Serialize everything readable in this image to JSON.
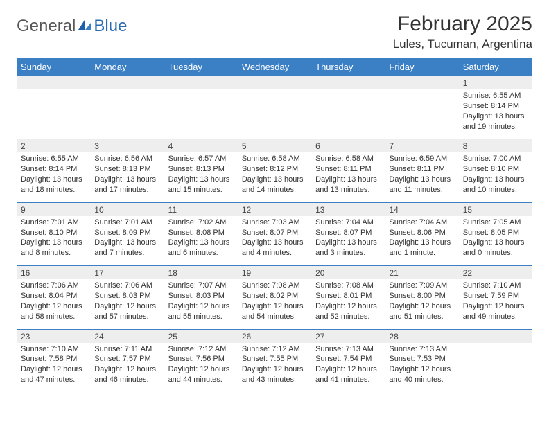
{
  "logo": {
    "gray": "General",
    "blue": "Blue"
  },
  "title": "February 2025",
  "location": "Lules, Tucuman, Argentina",
  "colors": {
    "header_bg": "#3b7fc4",
    "header_text": "#ffffff",
    "numrow_bg": "#eeeeee",
    "border": "#3b7fc4",
    "text": "#333333",
    "logo_gray": "#555555",
    "logo_blue": "#2b6cb0"
  },
  "typography": {
    "title_fontsize": 30,
    "location_fontsize": 17,
    "dayhead_fontsize": 13,
    "daynum_fontsize": 12,
    "body_fontsize": 11
  },
  "day_headers": [
    "Sunday",
    "Monday",
    "Tuesday",
    "Wednesday",
    "Thursday",
    "Friday",
    "Saturday"
  ],
  "weeks": [
    [
      null,
      null,
      null,
      null,
      null,
      null,
      {
        "n": "1",
        "sunrise": "6:55 AM",
        "sunset": "8:14 PM",
        "daylight": "13 hours and 19 minutes."
      }
    ],
    [
      {
        "n": "2",
        "sunrise": "6:55 AM",
        "sunset": "8:14 PM",
        "daylight": "13 hours and 18 minutes."
      },
      {
        "n": "3",
        "sunrise": "6:56 AM",
        "sunset": "8:13 PM",
        "daylight": "13 hours and 17 minutes."
      },
      {
        "n": "4",
        "sunrise": "6:57 AM",
        "sunset": "8:13 PM",
        "daylight": "13 hours and 15 minutes."
      },
      {
        "n": "5",
        "sunrise": "6:58 AM",
        "sunset": "8:12 PM",
        "daylight": "13 hours and 14 minutes."
      },
      {
        "n": "6",
        "sunrise": "6:58 AM",
        "sunset": "8:11 PM",
        "daylight": "13 hours and 13 minutes."
      },
      {
        "n": "7",
        "sunrise": "6:59 AM",
        "sunset": "8:11 PM",
        "daylight": "13 hours and 11 minutes."
      },
      {
        "n": "8",
        "sunrise": "7:00 AM",
        "sunset": "8:10 PM",
        "daylight": "13 hours and 10 minutes."
      }
    ],
    [
      {
        "n": "9",
        "sunrise": "7:01 AM",
        "sunset": "8:10 PM",
        "daylight": "13 hours and 8 minutes."
      },
      {
        "n": "10",
        "sunrise": "7:01 AM",
        "sunset": "8:09 PM",
        "daylight": "13 hours and 7 minutes."
      },
      {
        "n": "11",
        "sunrise": "7:02 AM",
        "sunset": "8:08 PM",
        "daylight": "13 hours and 6 minutes."
      },
      {
        "n": "12",
        "sunrise": "7:03 AM",
        "sunset": "8:07 PM",
        "daylight": "13 hours and 4 minutes."
      },
      {
        "n": "13",
        "sunrise": "7:04 AM",
        "sunset": "8:07 PM",
        "daylight": "13 hours and 3 minutes."
      },
      {
        "n": "14",
        "sunrise": "7:04 AM",
        "sunset": "8:06 PM",
        "daylight": "13 hours and 1 minute."
      },
      {
        "n": "15",
        "sunrise": "7:05 AM",
        "sunset": "8:05 PM",
        "daylight": "13 hours and 0 minutes."
      }
    ],
    [
      {
        "n": "16",
        "sunrise": "7:06 AM",
        "sunset": "8:04 PM",
        "daylight": "12 hours and 58 minutes."
      },
      {
        "n": "17",
        "sunrise": "7:06 AM",
        "sunset": "8:03 PM",
        "daylight": "12 hours and 57 minutes."
      },
      {
        "n": "18",
        "sunrise": "7:07 AM",
        "sunset": "8:03 PM",
        "daylight": "12 hours and 55 minutes."
      },
      {
        "n": "19",
        "sunrise": "7:08 AM",
        "sunset": "8:02 PM",
        "daylight": "12 hours and 54 minutes."
      },
      {
        "n": "20",
        "sunrise": "7:08 AM",
        "sunset": "8:01 PM",
        "daylight": "12 hours and 52 minutes."
      },
      {
        "n": "21",
        "sunrise": "7:09 AM",
        "sunset": "8:00 PM",
        "daylight": "12 hours and 51 minutes."
      },
      {
        "n": "22",
        "sunrise": "7:10 AM",
        "sunset": "7:59 PM",
        "daylight": "12 hours and 49 minutes."
      }
    ],
    [
      {
        "n": "23",
        "sunrise": "7:10 AM",
        "sunset": "7:58 PM",
        "daylight": "12 hours and 47 minutes."
      },
      {
        "n": "24",
        "sunrise": "7:11 AM",
        "sunset": "7:57 PM",
        "daylight": "12 hours and 46 minutes."
      },
      {
        "n": "25",
        "sunrise": "7:12 AM",
        "sunset": "7:56 PM",
        "daylight": "12 hours and 44 minutes."
      },
      {
        "n": "26",
        "sunrise": "7:12 AM",
        "sunset": "7:55 PM",
        "daylight": "12 hours and 43 minutes."
      },
      {
        "n": "27",
        "sunrise": "7:13 AM",
        "sunset": "7:54 PM",
        "daylight": "12 hours and 41 minutes."
      },
      {
        "n": "28",
        "sunrise": "7:13 AM",
        "sunset": "7:53 PM",
        "daylight": "12 hours and 40 minutes."
      },
      null
    ]
  ],
  "labels": {
    "sunrise": "Sunrise:",
    "sunset": "Sunset:",
    "daylight": "Daylight:"
  }
}
